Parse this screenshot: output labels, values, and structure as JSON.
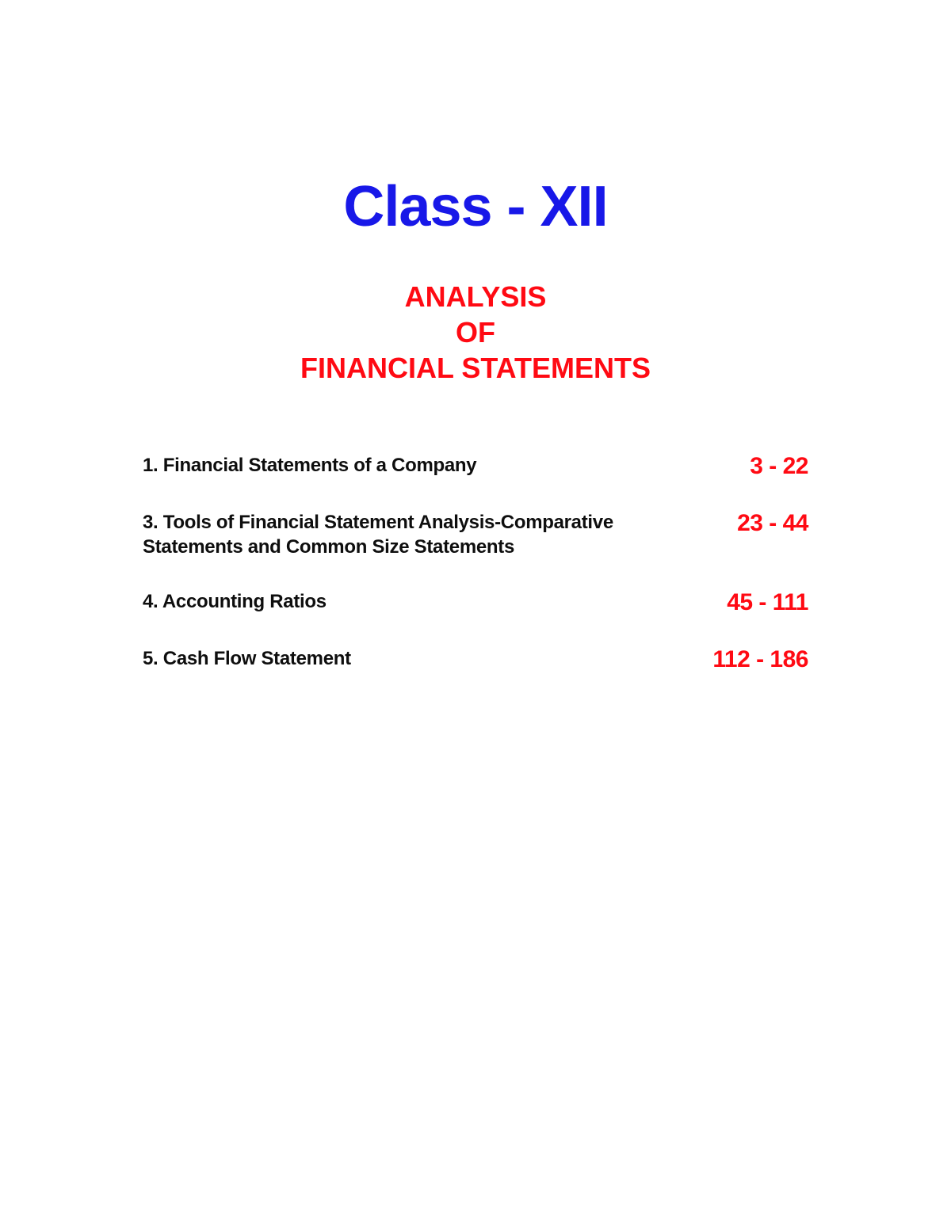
{
  "colors": {
    "title_color": "#1818e8",
    "subtitle_color": "#ff0a13",
    "label_color": "#0e0e0e",
    "pages_color": "#ff0a13",
    "background": "#ffffff"
  },
  "typography": {
    "title_fontsize": 72,
    "subtitle_fontsize": 36,
    "label_fontsize": 24,
    "pages_fontsize": 30
  },
  "title": "Class - XII",
  "subtitle": {
    "line1": "ANALYSIS",
    "line2": "OF",
    "line3": "FINANCIAL STATEMENTS"
  },
  "toc": [
    {
      "label": "1. Financial Statements of a Company",
      "pages": "3 - 22"
    },
    {
      "label": "3. Tools of Financial Statement Analysis-Comparative Statements and Common Size Statements",
      "pages": "23 - 44"
    },
    {
      "label": "4. Accounting Ratios",
      "pages": "45 - 111"
    },
    {
      "label": "5. Cash Flow Statement",
      "pages": "112 - 186"
    }
  ]
}
